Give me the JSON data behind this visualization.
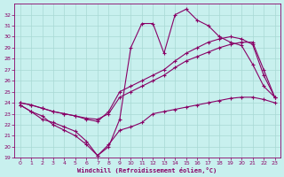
{
  "xlabel": "Windchill (Refroidissement éolien,°C)",
  "bg_color": "#c8f0ee",
  "grid_color": "#a8d8d4",
  "line_color": "#880066",
  "xlim": [
    -0.5,
    23.5
  ],
  "ylim": [
    19,
    33
  ],
  "xticks": [
    0,
    1,
    2,
    3,
    4,
    5,
    6,
    7,
    8,
    9,
    10,
    11,
    12,
    13,
    14,
    15,
    16,
    17,
    18,
    19,
    20,
    21,
    22,
    23
  ],
  "yticks": [
    19,
    20,
    21,
    22,
    23,
    24,
    25,
    26,
    27,
    28,
    29,
    30,
    31,
    32
  ],
  "s1_x": [
    0,
    1,
    2,
    3,
    4,
    5,
    6,
    7,
    8,
    9,
    10,
    11,
    12,
    13,
    14,
    15,
    16,
    17,
    18,
    19,
    20,
    21,
    22,
    23
  ],
  "s1_y": [
    23.8,
    23.2,
    22.5,
    22.2,
    21.8,
    21.4,
    20.5,
    19.2,
    20.2,
    21.5,
    21.8,
    22.2,
    23.0,
    23.2,
    23.4,
    23.6,
    23.8,
    24.0,
    24.2,
    24.4,
    24.5,
    24.5,
    24.3,
    24.0
  ],
  "s2_x": [
    0,
    1,
    2,
    3,
    4,
    5,
    6,
    7,
    8,
    9,
    10,
    11,
    12,
    13,
    14,
    15,
    16,
    17,
    18,
    19,
    20,
    21,
    22,
    23
  ],
  "s2_y": [
    24.0,
    23.8,
    23.5,
    23.2,
    23.0,
    22.8,
    22.6,
    22.5,
    23.0,
    24.5,
    25.0,
    25.5,
    26.0,
    26.5,
    27.2,
    27.8,
    28.2,
    28.6,
    29.0,
    29.3,
    29.5,
    29.5,
    27.0,
    24.5
  ],
  "s3_x": [
    0,
    1,
    2,
    3,
    4,
    5,
    6,
    7,
    8,
    9,
    10,
    11,
    12,
    13,
    14,
    15,
    16,
    17,
    18,
    19,
    20,
    21,
    22,
    23
  ],
  "s3_y": [
    24.0,
    23.8,
    23.5,
    23.2,
    23.0,
    22.8,
    22.5,
    22.3,
    23.2,
    25.0,
    25.5,
    26.0,
    26.5,
    27.0,
    27.8,
    28.5,
    29.0,
    29.5,
    29.8,
    30.0,
    29.8,
    29.3,
    26.5,
    24.5
  ],
  "s4_x": [
    0,
    1,
    2,
    3,
    4,
    5,
    6,
    7,
    8,
    9,
    10,
    11,
    12,
    13,
    14,
    15,
    16,
    17,
    18,
    19,
    20,
    21,
    22,
    23
  ],
  "s4_y": [
    23.8,
    23.2,
    22.8,
    22.0,
    21.5,
    21.0,
    20.2,
    19.2,
    20.0,
    22.5,
    29.0,
    31.2,
    31.2,
    28.5,
    32.0,
    32.5,
    31.5,
    31.0,
    30.0,
    29.5,
    29.2,
    27.5,
    25.5,
    24.5
  ]
}
